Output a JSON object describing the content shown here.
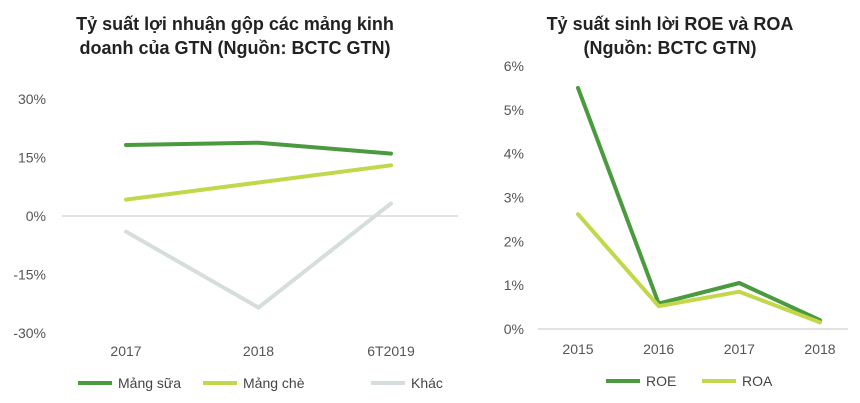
{
  "chart_data": [
    {
      "type": "line",
      "title_line1": "Tỷ suất lợi nhuận gộp các mảng kinh",
      "title_line2": "doanh của GTN (Nguồn: BCTC GTN)",
      "categories": [
        "2017",
        "2018",
        "6T2019"
      ],
      "ylim": [
        -30,
        30
      ],
      "yticks": [
        30,
        15,
        0,
        -15,
        -30
      ],
      "ytick_labels": [
        "30%",
        "15%",
        "0%",
        "-15%",
        "-30%"
      ],
      "grid": false,
      "legend_position": "bottom",
      "series": [
        {
          "name": "Mảng sữa",
          "color": "#4a9a3e",
          "values": [
            18.2,
            18.8,
            16.0
          ]
        },
        {
          "name": "Mảng chè",
          "color": "#c3d74a",
          "values": [
            4.2,
            8.6,
            13.0
          ]
        },
        {
          "name": "Khác",
          "color": "#d5dedb",
          "values": [
            -4.0,
            -23.5,
            3.2
          ]
        }
      ]
    },
    {
      "type": "line",
      "title_line1": "Tỷ suất sinh lời ROE và ROA",
      "title_line2": "(Nguồn: BCTC GTN)",
      "categories": [
        "2015",
        "2016",
        "2017",
        "2018"
      ],
      "ylim": [
        0,
        6
      ],
      "yticks": [
        6,
        5,
        4,
        3,
        2,
        1,
        0
      ],
      "ytick_labels": [
        "6%",
        "5%",
        "4%",
        "3%",
        "2%",
        "1%",
        "0%"
      ],
      "grid": false,
      "legend_position": "bottom",
      "series": [
        {
          "name": "ROE",
          "color": "#4a9a3e",
          "values": [
            5.5,
            0.58,
            1.05,
            0.2
          ]
        },
        {
          "name": "ROA",
          "color": "#c3d74a",
          "values": [
            2.62,
            0.52,
            0.85,
            0.15
          ]
        }
      ]
    }
  ]
}
